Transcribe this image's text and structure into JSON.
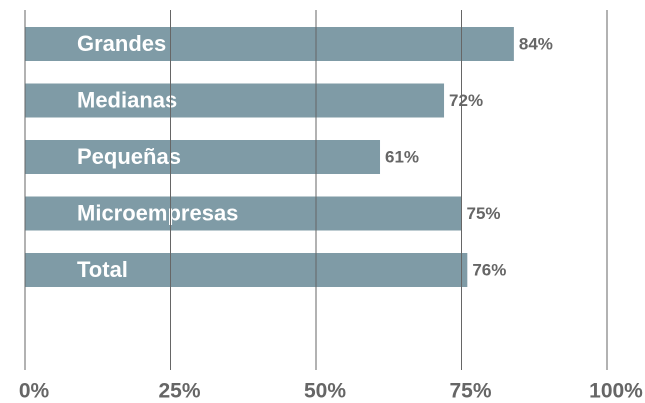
{
  "chart_data": {
    "type": "bar",
    "orientation": "horizontal",
    "categories": [
      "Grandes",
      "Medianas",
      "Pequeñas",
      "Microempresas",
      "Total"
    ],
    "values": [
      84,
      72,
      61,
      75,
      76
    ],
    "value_labels": [
      "84%",
      "72%",
      "61%",
      "75%",
      "76%"
    ],
    "color": "#7f9ba6",
    "xlim": [
      0,
      100
    ],
    "xticks": [
      {
        "value": 0,
        "label": "0%"
      },
      {
        "value": 25,
        "label": "25%"
      },
      {
        "value": 50,
        "label": "50%"
      },
      {
        "value": 75,
        "label": "75%"
      },
      {
        "value": 100,
        "label": "100%"
      }
    ],
    "grid": true
  }
}
